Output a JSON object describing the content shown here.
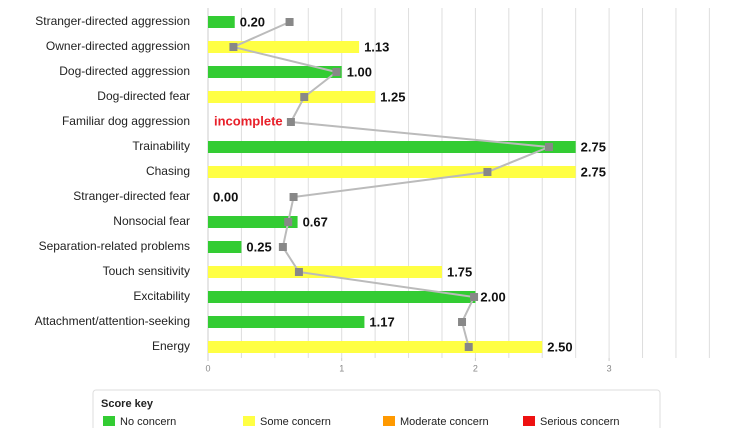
{
  "chart_data": {
    "type": "bar",
    "orientation": "horizontal",
    "categories": [
      "Stranger-directed aggression",
      "Owner-directed aggression",
      "Dog-directed aggression",
      "Dog-directed fear",
      "Familiar dog aggression",
      "Trainability",
      "Chasing",
      "Stranger-directed fear",
      "Nonsocial fear",
      "Separation-related problems",
      "Touch sensitivity",
      "Excitability",
      "Attachment/attention-seeking",
      "Energy"
    ],
    "values": [
      0.2,
      1.13,
      1.0,
      1.25,
      null,
      2.75,
      2.75,
      0.0,
      0.67,
      0.25,
      1.75,
      2.0,
      1.17,
      2.5
    ],
    "value_labels": [
      "0.20",
      "1.13",
      "1.00",
      "1.25",
      "incomplete",
      "2.75",
      "2.75",
      "0.00",
      "0.67",
      "0.25",
      "1.75",
      "2.00",
      "1.17",
      "2.50"
    ],
    "colors": [
      "#33cc33",
      "#ffff44",
      "#33cc33",
      "#ffff44",
      null,
      "#33cc33",
      "#ffff44",
      "#33cc33",
      "#33cc33",
      "#33cc33",
      "#ffff44",
      "#33cc33",
      "#33cc33",
      "#ffff44"
    ],
    "incomplete_color": "#e8202a",
    "line": {
      "color": "#888888",
      "values": [
        0.61,
        0.19,
        0.96,
        0.72,
        0.62,
        2.55,
        2.09,
        0.64,
        0.6,
        0.56,
        0.68,
        1.99,
        1.9,
        1.95
      ]
    },
    "xlim": [
      0,
      3.85
    ],
    "xticks": [
      0,
      1,
      2,
      3
    ],
    "xgrid": [
      0.25,
      0.5,
      0.75,
      1,
      1.25,
      1.5,
      1.75,
      2,
      2.25,
      2.5,
      2.75,
      3,
      3.25,
      3.5,
      3.75
    ],
    "legend": {
      "title": "Score key",
      "items": [
        {
          "name": "No concern",
          "color": "#33cc33"
        },
        {
          "name": "Some concern",
          "color": "#ffff44"
        },
        {
          "name": "Moderate concern",
          "color": "#ff9900"
        },
        {
          "name": "Serious concern",
          "color": "#ee1111"
        }
      ]
    }
  }
}
